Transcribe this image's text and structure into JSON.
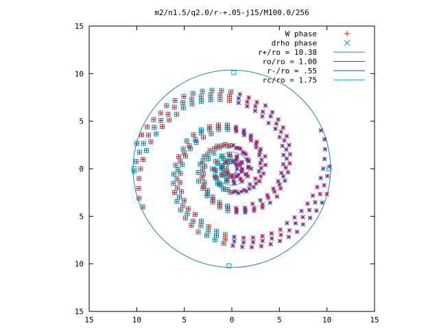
{
  "chart_data": {
    "type": "scatter",
    "title": "m2/n1.5/q2.0/r-+.05-j15/M100.0/256",
    "xlabel": "",
    "ylabel": "",
    "xlim": [
      -15,
      15
    ],
    "ylim": [
      -15,
      15
    ],
    "x_ticks": [
      -15,
      -10,
      -5,
      0,
      5,
      10,
      15
    ],
    "y_ticks": [
      15,
      10,
      5,
      0,
      -5,
      -10,
      -15
    ],
    "x_tick_labels": [
      "15",
      "10",
      "5",
      "0",
      "5",
      "10",
      "15"
    ],
    "y_tick_labels": [
      "15",
      "10",
      "5",
      "0",
      "5",
      "10",
      "15"
    ],
    "grid": false,
    "legend_position": "top-right",
    "legend": [
      {
        "label": "W phase",
        "marker": "plus",
        "color": "#ff0000"
      },
      {
        "label": "drho phase",
        "marker": "cross",
        "color": "#00a0c0"
      },
      {
        "label": "r+/ro = 10.38",
        "marker": "line",
        "color": "#2080c0"
      },
      {
        "label": "ro/ro = 1.00",
        "marker": "line",
        "color": "#a020a0"
      },
      {
        "label": "r-/ro = .55",
        "marker": "line",
        "color": "#0050c0"
      },
      {
        "label": "rc/ro = 1.75",
        "marker": "line",
        "color": "#20c0d0"
      }
    ],
    "circles": [
      {
        "name": "r+/ro",
        "radius": 10.38,
        "color": "#2080c0"
      },
      {
        "name": "ro/ro",
        "radius": 1.0,
        "color": "#a020a0"
      },
      {
        "name": "r-/ro",
        "radius": 0.55,
        "color": "#0050c0"
      },
      {
        "name": "rc/ro",
        "radius": 1.75,
        "color": "#20c0d0"
      }
    ],
    "spiral": {
      "arms": 2,
      "r_min": 0.55,
      "r_max": 10.38,
      "markers_per_arm": 180
    },
    "series": [
      {
        "name": "W phase",
        "marker": "plus",
        "color": "#ff0000"
      },
      {
        "name": "drho phase",
        "marker": "cross",
        "color": "#00a0c0"
      }
    ],
    "edge_markers": [
      {
        "x": -10.3,
        "y": 0.0
      },
      {
        "x": 10.2,
        "y": 0.0
      },
      {
        "x": 0.2,
        "y": 10.1
      },
      {
        "x": -0.3,
        "y": -10.2
      }
    ]
  }
}
